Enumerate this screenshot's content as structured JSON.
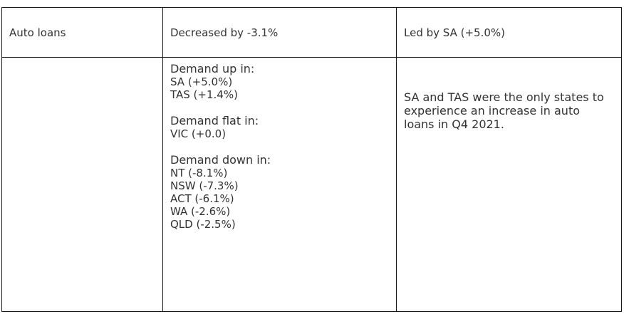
{
  "row1": {
    "category": "Auto loans",
    "change": "Decreased by -3.1%",
    "leader": "Led by SA (+5.0%)"
  },
  "detail": {
    "up": {
      "heading": "Demand up in:",
      "items": [
        "SA (+5.0%)",
        "TAS (+1.4%)"
      ]
    },
    "flat": {
      "heading": "Demand flat in:",
      "items": [
        "VIC (+0.0)"
      ]
    },
    "down": {
      "heading": "Demand down in:",
      "items": [
        "NT (-8.1%)",
        "NSW (-7.3%)",
        "ACT (-6.1%)",
        "WA (-2.6%)",
        "QLD (-2.5%)"
      ]
    }
  },
  "summary": "SA and TAS were the only states to experience an increase in auto loans in Q4 2021."
}
